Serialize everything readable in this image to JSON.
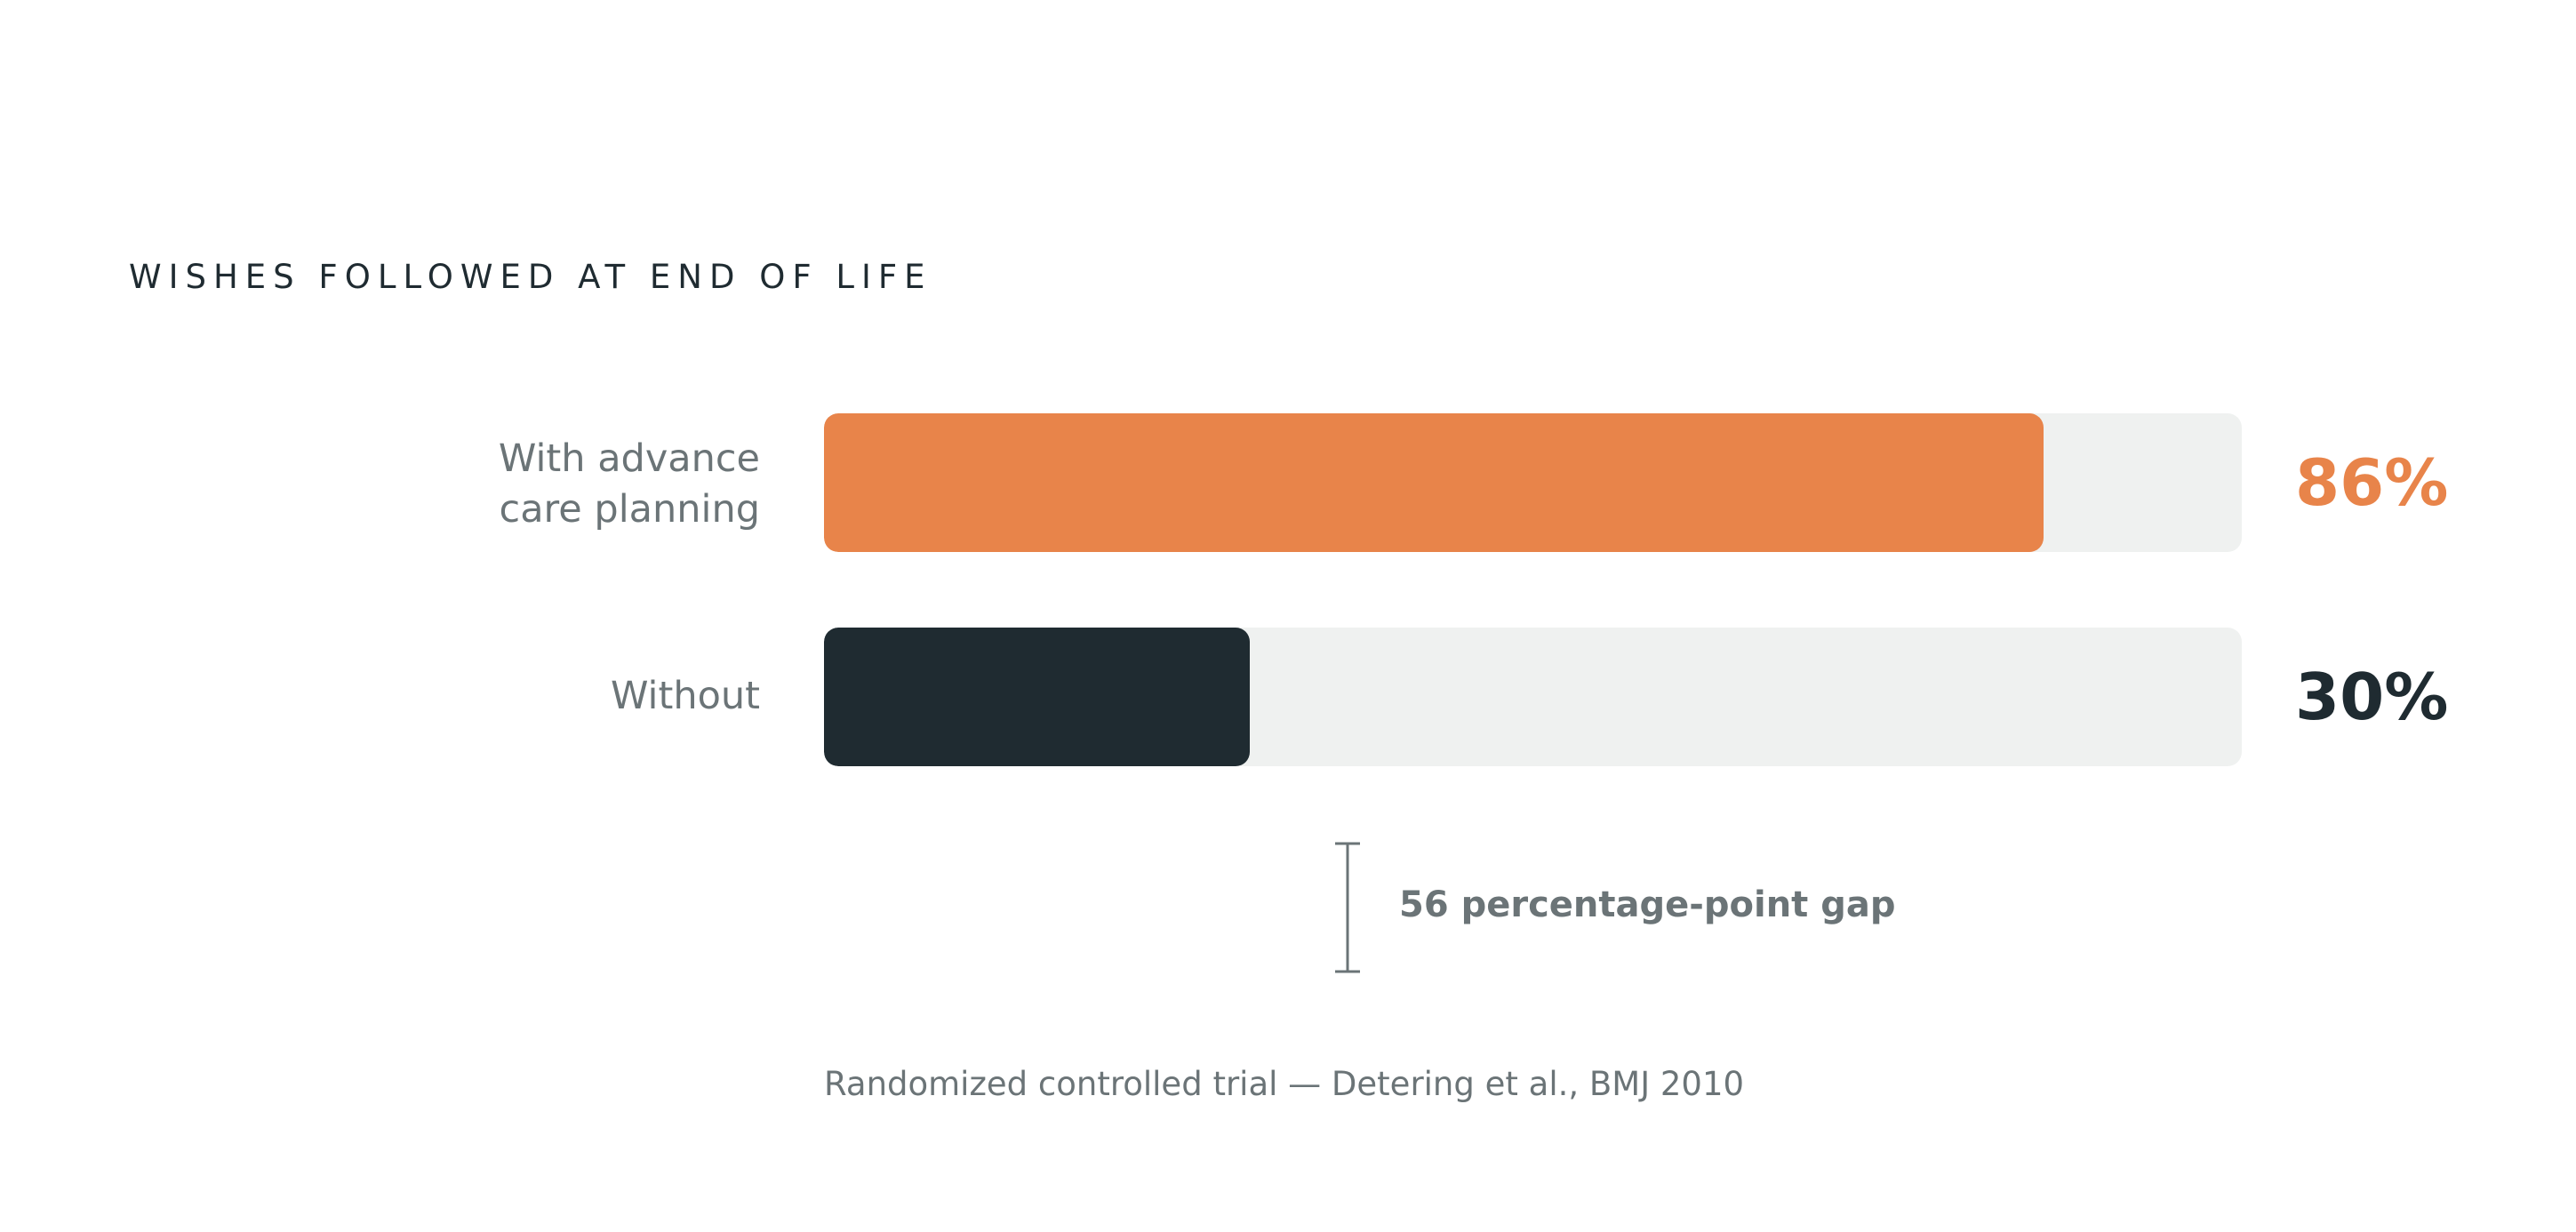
{
  "chart_data": {
    "type": "bar",
    "title": "WISHES FOLLOWED AT END OF LIFE",
    "categories": [
      "With advance care planning",
      "Without"
    ],
    "category_lines": [
      [
        "With advance",
        "care planning"
      ],
      [
        "Without"
      ]
    ],
    "values": [
      86,
      30
    ],
    "value_labels": [
      "86%",
      "30%"
    ],
    "colors": [
      "#e8844a",
      "#1f2b31"
    ],
    "track_color": "#eff1f0",
    "xlim": [
      0,
      100
    ],
    "orientation": "horizontal",
    "annotation": "56 percentage-point gap",
    "source": "Randomized controlled trial — Detering et al., BMJ 2010"
  }
}
